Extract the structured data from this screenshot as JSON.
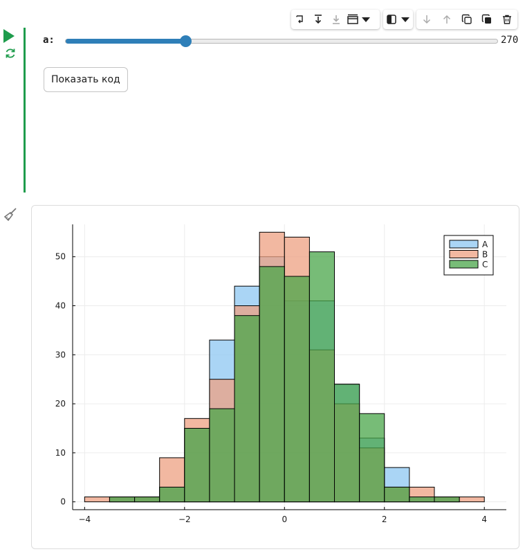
{
  "cell": {
    "slider": {
      "label": "a:",
      "value": "270",
      "fraction": 0.278
    },
    "show_code_label": "Показать код"
  },
  "toolbar": {
    "icons": [
      "wrap-icon",
      "move-to-bottom-icon",
      "download-icon",
      "layout-icon",
      "chevron-down-icon",
      "theme-toggle-icon",
      "chevron-down-icon",
      "arrow-down-icon",
      "arrow-up-icon",
      "copy-icon",
      "duplicate-icon",
      "trash-icon"
    ]
  },
  "chart_data": {
    "type": "bar",
    "bin_edges": [
      -4,
      -3.5,
      -3,
      -2.5,
      -2,
      -1.5,
      -1,
      -0.5,
      0,
      0.5,
      1,
      1.5,
      2,
      2.5,
      3,
      3.5,
      4
    ],
    "series": [
      {
        "name": "A",
        "color": "#8ec7f2",
        "values": [
          0,
          1,
          1,
          3,
          15,
          33,
          44,
          50,
          41,
          41,
          24,
          13,
          7,
          1,
          1,
          0
        ]
      },
      {
        "name": "B",
        "color": "#eea082",
        "values": [
          1,
          1,
          1,
          9,
          17,
          25,
          40,
          55,
          54,
          31,
          20,
          11,
          3,
          3,
          1,
          1
        ]
      },
      {
        "name": "C",
        "color": "#4aa54a",
        "values": [
          0,
          1,
          1,
          3,
          15,
          19,
          38,
          48,
          46,
          51,
          24,
          18,
          3,
          1,
          1,
          0
        ]
      }
    ],
    "xlim": [
      -4.24,
      4.44
    ],
    "ylim": [
      -1.6,
      56.6
    ],
    "xticks": [
      -4,
      -2,
      0,
      2,
      4
    ],
    "xtick_labels": [
      "−4",
      "−2",
      "0",
      "2",
      "4"
    ],
    "yticks": [
      0,
      10,
      20,
      30,
      40,
      50
    ],
    "ytick_labels": [
      "0",
      "10",
      "20",
      "30",
      "40",
      "50"
    ],
    "grid": true,
    "legend": "top-right",
    "legend_labels": [
      "A",
      "B",
      "C"
    ]
  }
}
